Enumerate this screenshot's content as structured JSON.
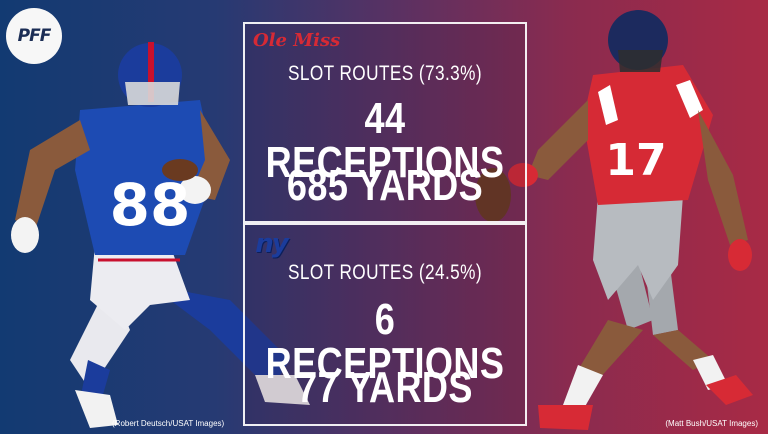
{
  "brand": {
    "logo_text": "PFF"
  },
  "panels": {
    "top": {
      "team_logo": "Ole Miss",
      "route_label": "SLOT ROUTES (73.3%)",
      "receptions": "44 RECEPTIONS",
      "yards": "685 YARDS"
    },
    "bottom": {
      "team_logo": "ny",
      "route_label": "SLOT ROUTES (24.5%)",
      "receptions": "6 RECEPTIONS",
      "yards": "77 YARDS"
    }
  },
  "players": {
    "left": {
      "jersey_number": "88"
    },
    "right": {
      "jersey_number": "17"
    }
  },
  "credits": {
    "left": "(Robert Deutsch/USAT Images)",
    "right": "(Matt Bush/USAT Images)"
  },
  "colors": {
    "giants_blue": "#1b3c9c",
    "ole_miss_red": "#d62a35"
  }
}
